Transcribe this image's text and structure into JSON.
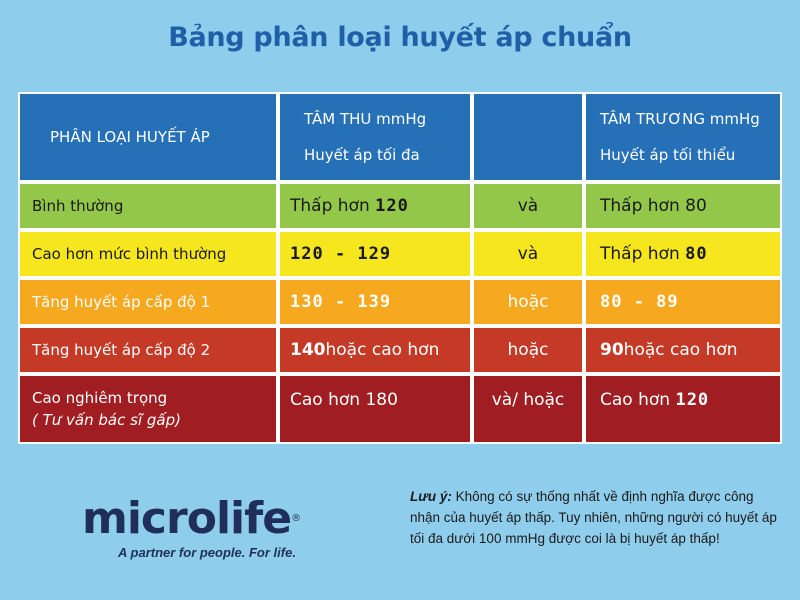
{
  "title": "Bảng phân loại huyết áp chuẩn",
  "table": {
    "header": {
      "category": "PHÂN LOẠI HUYẾT ÁP",
      "systolic_title": "TÂM THU mmHg",
      "systolic_sub": "Huyết áp tối đa",
      "connector": "",
      "diastolic_title": "TÂM TRƯƠNG mmHg",
      "diastolic_sub": "Huyết áp tối thiểu"
    },
    "rows": [
      {
        "category": "Bình thường",
        "systolic_prefix": "Thấp hơn ",
        "systolic_value": "120",
        "connector": "và",
        "diastolic_text": "Thấp hơn 80",
        "color": "#92c74a"
      },
      {
        "category": "Cao hơn mức bình thường",
        "systolic_value": "120 - 129",
        "connector": "và",
        "diastolic_prefix": "Thấp hơn ",
        "diastolic_value": "80",
        "color": "#f5e61e"
      },
      {
        "category": "Tăng huyết áp cấp độ 1",
        "systolic_value": "130 - 139",
        "connector": "hoặc",
        "diastolic_value": "80 - 89",
        "color": "#f6a81f"
      },
      {
        "category": "Tăng huyết áp cấp độ 2",
        "systolic_value": "140",
        "systolic_suffix": " hoặc cao hơn",
        "connector": "hoặc",
        "diastolic_value": "90",
        "diastolic_suffix": " hoặc cao hơn",
        "color": "#c43a27"
      },
      {
        "category": "Cao nghiêm trọng",
        "category_sub": "( Tư vấn bác sĩ gấp)",
        "systolic_text": "Cao hơn 180",
        "connector": "và/ hoặc",
        "diastolic_prefix": "Cao hơn ",
        "diastolic_value": "120",
        "color": "#a01e22"
      }
    ]
  },
  "logo": {
    "word": "microlife",
    "mark": "®",
    "tagline": "A partner for people. For life."
  },
  "note": {
    "label": "Lưu ý:",
    "text": " Không có sự thống nhất về định nghĩa được công nhận của huyết áp thấp. Tuy nhiên, những người có huyết áp tối đa dưới 100 mmHg được coi là bị huyết áp thấp!"
  }
}
